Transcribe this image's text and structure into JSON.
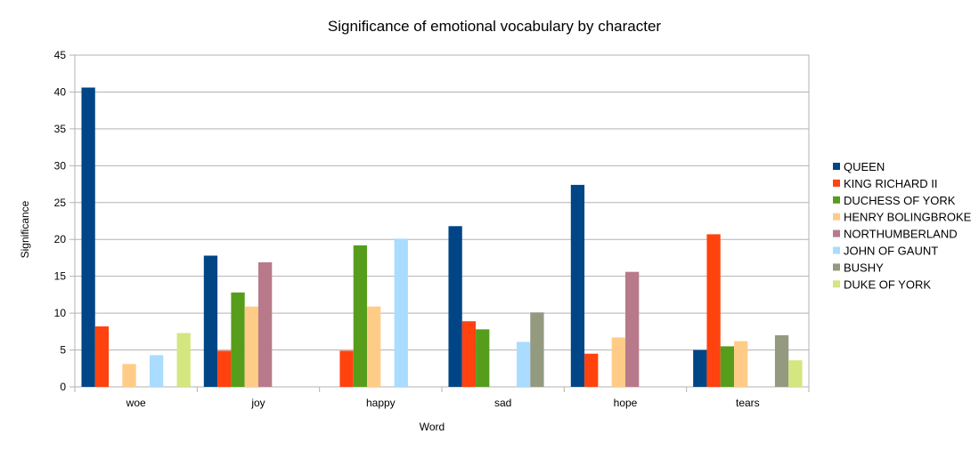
{
  "chart_data": {
    "type": "bar",
    "title": "Significance of emotional vocabulary by character",
    "xlabel": "Word",
    "ylabel": "Significance",
    "ylim": [
      0,
      45
    ],
    "yticks": [
      0,
      5,
      10,
      15,
      20,
      25,
      30,
      35,
      40,
      45
    ],
    "grid": true,
    "legend_position": "right",
    "categories": [
      "woe",
      "joy",
      "happy",
      "sad",
      "hope",
      "tears"
    ],
    "series": [
      {
        "name": "QUEEN",
        "color": "#004586",
        "values": [
          40.6,
          17.8,
          0,
          21.8,
          27.4,
          5.0
        ]
      },
      {
        "name": "KING RICHARD II",
        "color": "#ff420e",
        "values": [
          8.2,
          4.9,
          4.9,
          8.9,
          4.5,
          20.7
        ]
      },
      {
        "name": "DUCHESS OF YORK",
        "color": "#579d1c",
        "values": [
          0,
          12.8,
          19.2,
          7.8,
          0,
          5.5
        ]
      },
      {
        "name": "HENRY BOLINGBROKE",
        "color": "#ffd320",
        "values": [
          3.1,
          10.9,
          10.9,
          0,
          6.7,
          6.2
        ]
      },
      {
        "name": "NORTHUMBERLAND",
        "color": "#7e0021",
        "values": [
          0,
          16.9,
          0,
          0,
          15.6,
          0
        ]
      },
      {
        "name": "JOHN OF GAUNT",
        "color": "#83caff",
        "values": [
          4.3,
          0,
          20.1,
          6.1,
          0,
          0
        ]
      },
      {
        "name": "BUSHY",
        "color": "#314004",
        "values": [
          0,
          0,
          0,
          10.1,
          0,
          7.0
        ]
      },
      {
        "name": "DUKE OF YORK",
        "color": "#aecf00",
        "values": [
          7.3,
          0,
          0,
          0,
          0,
          3.6
        ]
      }
    ],
    "display_colors": [
      "#004586",
      "#ff420e",
      "#579d1c",
      "#ffcc88",
      "#b87a8a",
      "#a9dcff",
      "#949a80",
      "#d4e67f"
    ]
  }
}
